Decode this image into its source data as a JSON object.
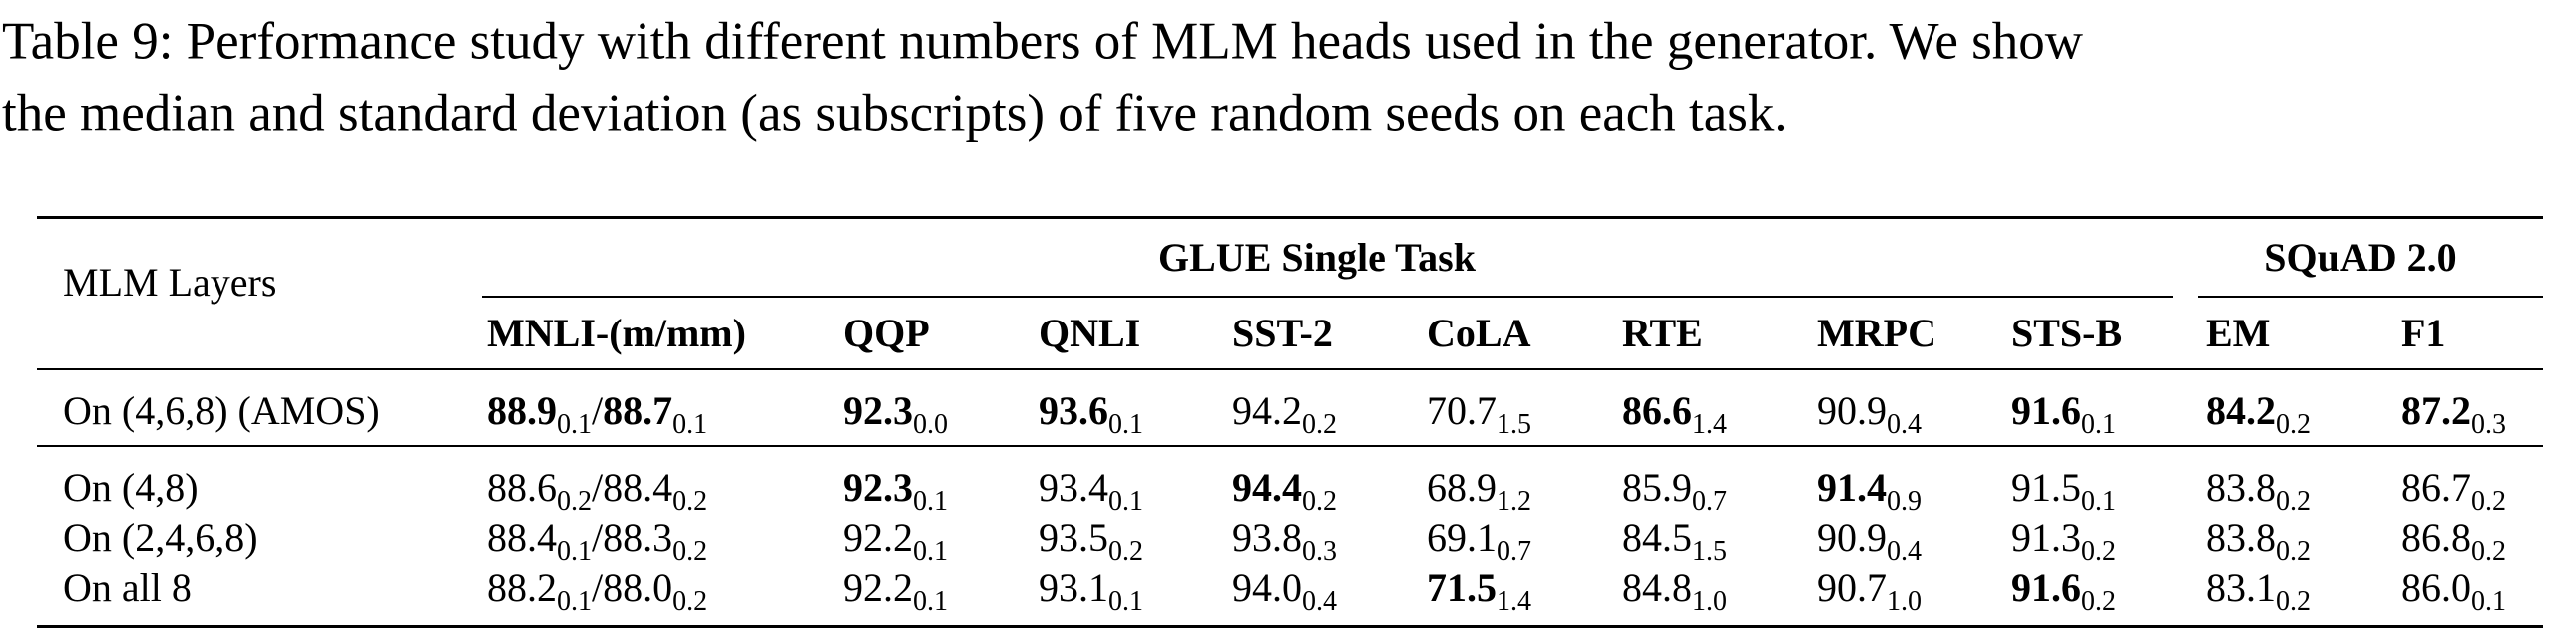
{
  "caption": {
    "lines": [
      "Table 9: Performance study with different numbers of MLM heads used in the generator. We show",
      "the median and standard deviation (as subscripts) of five random seeds on each task."
    ]
  },
  "table": {
    "row_header": "MLM Layers",
    "groups": [
      "GLUE Single Task",
      "SQuAD 2.0"
    ],
    "columns": [
      "MNLI-(m/mm)",
      "QQP",
      "QNLI",
      "SST-2",
      "CoLA",
      "RTE",
      "MRPC",
      "STS-B",
      "EM",
      "F1"
    ],
    "separator": "/",
    "rows": [
      {
        "label": "On (4,6,8) (AMOS)",
        "cells": [
          [
            {
              "value": "88.9",
              "sub": "0.1",
              "bold": true
            },
            {
              "value": "88.7",
              "sub": "0.1",
              "bold": true
            }
          ],
          [
            {
              "value": "92.3",
              "sub": "0.0",
              "bold": true
            }
          ],
          [
            {
              "value": "93.6",
              "sub": "0.1",
              "bold": true
            }
          ],
          [
            {
              "value": "94.2",
              "sub": "0.2",
              "bold": false
            }
          ],
          [
            {
              "value": "70.7",
              "sub": "1.5",
              "bold": false
            }
          ],
          [
            {
              "value": "86.6",
              "sub": "1.4",
              "bold": true
            }
          ],
          [
            {
              "value": "90.9",
              "sub": "0.4",
              "bold": false
            }
          ],
          [
            {
              "value": "91.6",
              "sub": "0.1",
              "bold": true
            }
          ],
          [
            {
              "value": "84.2",
              "sub": "0.2",
              "bold": true
            }
          ],
          [
            {
              "value": "87.2",
              "sub": "0.3",
              "bold": true
            }
          ]
        ]
      },
      {
        "label": "On (4,8)",
        "cells": [
          [
            {
              "value": "88.6",
              "sub": "0.2",
              "bold": false
            },
            {
              "value": "88.4",
              "sub": "0.2",
              "bold": false
            }
          ],
          [
            {
              "value": "92.3",
              "sub": "0.1",
              "bold": true
            }
          ],
          [
            {
              "value": "93.4",
              "sub": "0.1",
              "bold": false
            }
          ],
          [
            {
              "value": "94.4",
              "sub": "0.2",
              "bold": true
            }
          ],
          [
            {
              "value": "68.9",
              "sub": "1.2",
              "bold": false
            }
          ],
          [
            {
              "value": "85.9",
              "sub": "0.7",
              "bold": false
            }
          ],
          [
            {
              "value": "91.4",
              "sub": "0.9",
              "bold": true
            }
          ],
          [
            {
              "value": "91.5",
              "sub": "0.1",
              "bold": false
            }
          ],
          [
            {
              "value": "83.8",
              "sub": "0.2",
              "bold": false
            }
          ],
          [
            {
              "value": "86.7",
              "sub": "0.2",
              "bold": false
            }
          ]
        ]
      },
      {
        "label": "On (2,4,6,8)",
        "cells": [
          [
            {
              "value": "88.4",
              "sub": "0.1",
              "bold": false
            },
            {
              "value": "88.3",
              "sub": "0.2",
              "bold": false
            }
          ],
          [
            {
              "value": "92.2",
              "sub": "0.1",
              "bold": false
            }
          ],
          [
            {
              "value": "93.5",
              "sub": "0.2",
              "bold": false
            }
          ],
          [
            {
              "value": "93.8",
              "sub": "0.3",
              "bold": false
            }
          ],
          [
            {
              "value": "69.1",
              "sub": "0.7",
              "bold": false
            }
          ],
          [
            {
              "value": "84.5",
              "sub": "1.5",
              "bold": false
            }
          ],
          [
            {
              "value": "90.9",
              "sub": "0.4",
              "bold": false
            }
          ],
          [
            {
              "value": "91.3",
              "sub": "0.2",
              "bold": false
            }
          ],
          [
            {
              "value": "83.8",
              "sub": "0.2",
              "bold": false
            }
          ],
          [
            {
              "value": "86.8",
              "sub": "0.2",
              "bold": false
            }
          ]
        ]
      },
      {
        "label": "On all 8",
        "cells": [
          [
            {
              "value": "88.2",
              "sub": "0.1",
              "bold": false
            },
            {
              "value": "88.0",
              "sub": "0.2",
              "bold": false
            }
          ],
          [
            {
              "value": "92.2",
              "sub": "0.1",
              "bold": false
            }
          ],
          [
            {
              "value": "93.1",
              "sub": "0.1",
              "bold": false
            }
          ],
          [
            {
              "value": "94.0",
              "sub": "0.4",
              "bold": false
            }
          ],
          [
            {
              "value": "71.5",
              "sub": "1.4",
              "bold": true
            }
          ],
          [
            {
              "value": "84.8",
              "sub": "1.0",
              "bold": false
            }
          ],
          [
            {
              "value": "90.7",
              "sub": "1.0",
              "bold": false
            }
          ],
          [
            {
              "value": "91.6",
              "sub": "0.2",
              "bold": true
            }
          ],
          [
            {
              "value": "83.1",
              "sub": "0.2",
              "bold": false
            }
          ],
          [
            {
              "value": "86.0",
              "sub": "0.1",
              "bold": false
            }
          ]
        ]
      }
    ]
  }
}
